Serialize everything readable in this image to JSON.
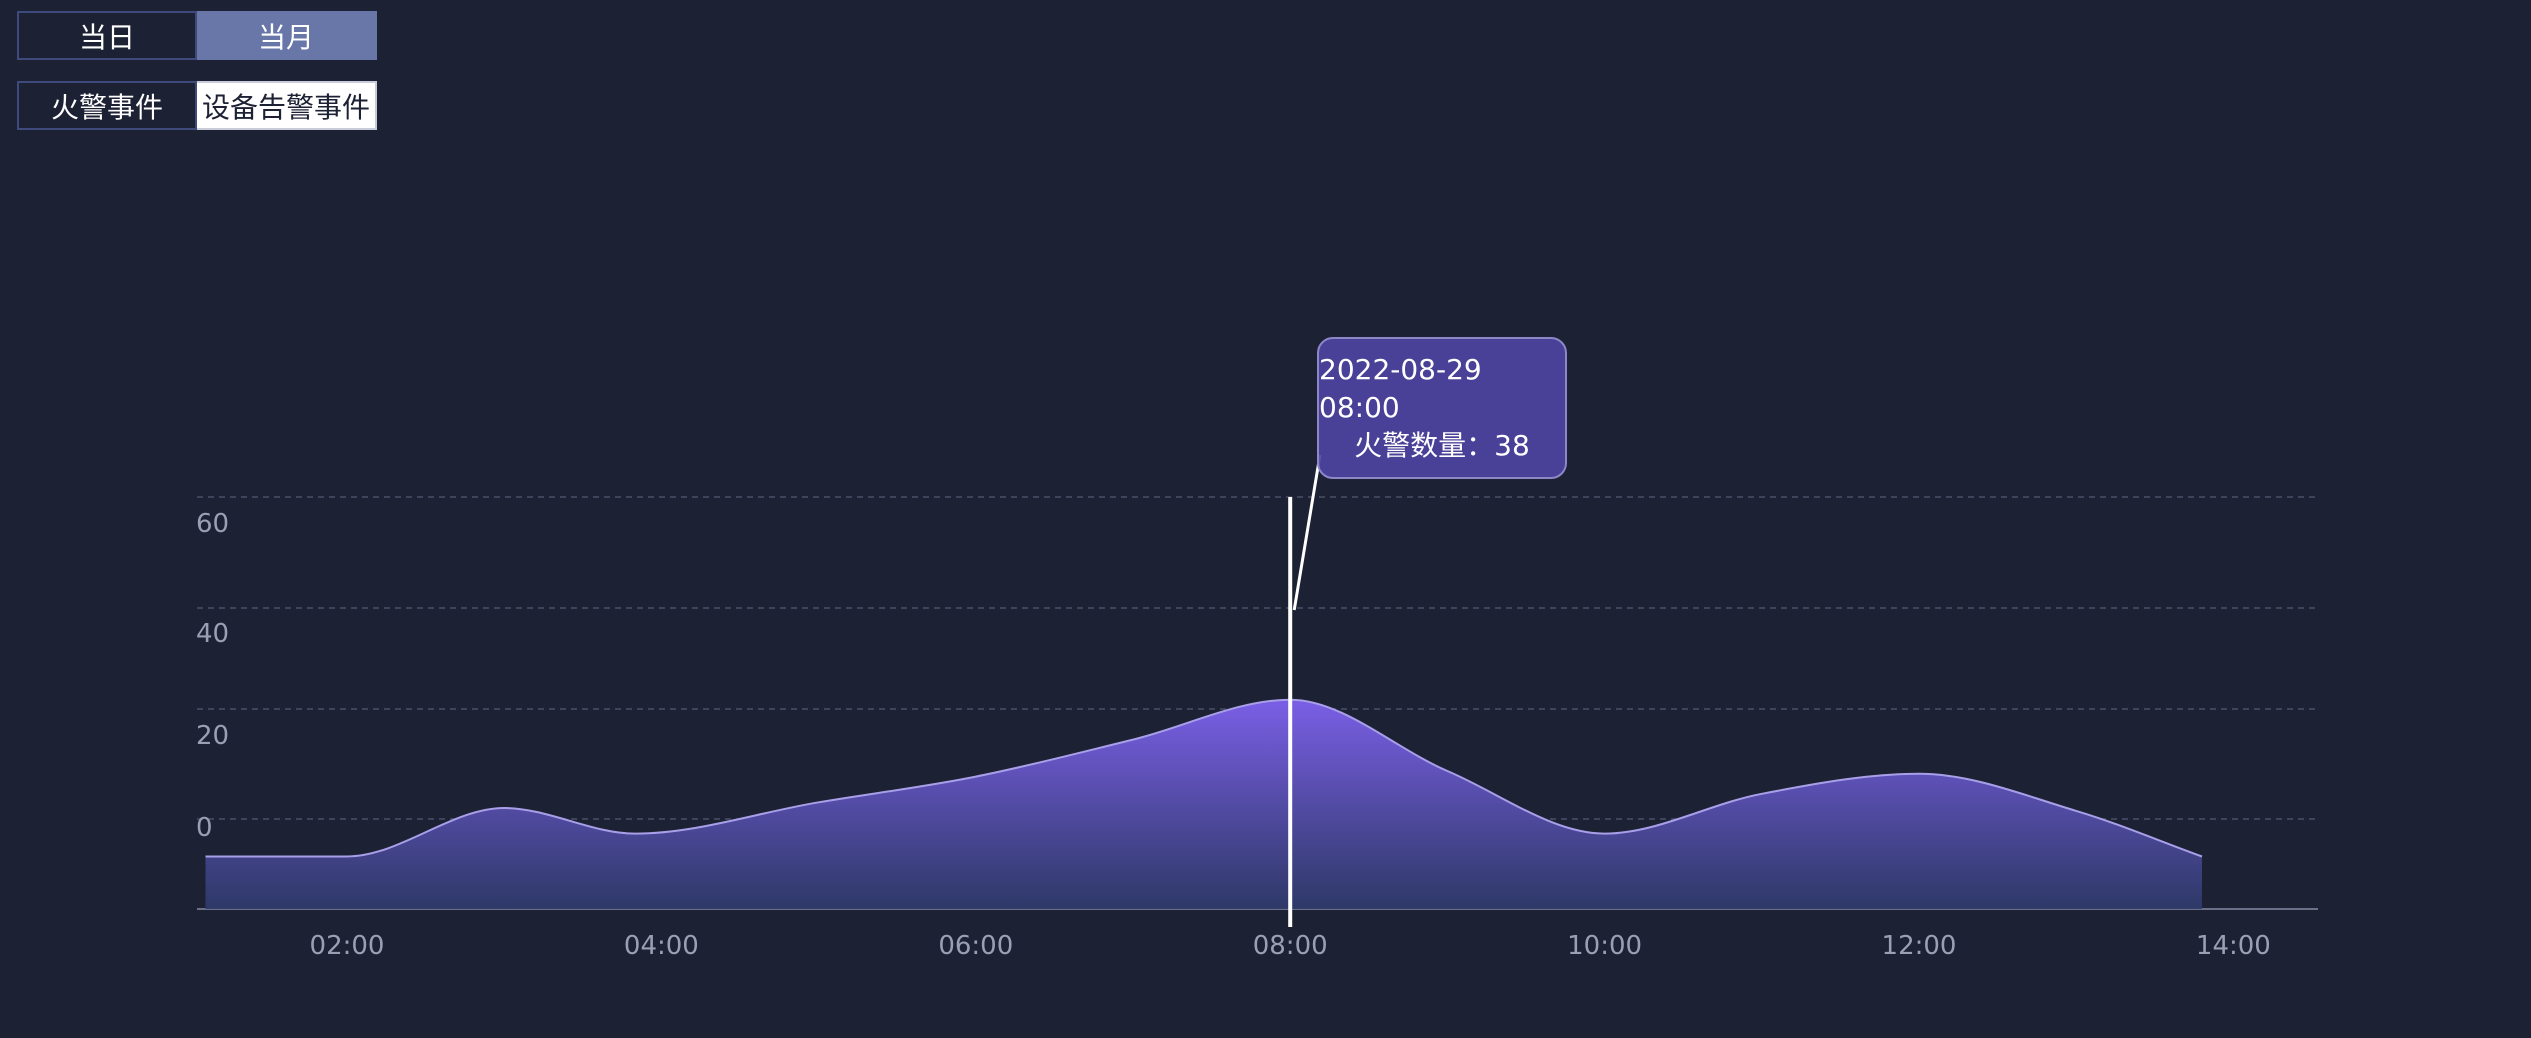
{
  "controls": {
    "range_tabs": [
      "当日",
      "当月"
    ],
    "range_active": "当月",
    "event_tabs": [
      "火警事件",
      "设备告警事件"
    ],
    "event_active": "设备告警事件"
  },
  "tooltip": {
    "time": "2022-08-29 08:00",
    "value_line": "火警数量：38"
  },
  "colors": {
    "background": "#1c2133",
    "line": "#a89fe8",
    "area_top": "#7a5fe6",
    "area_bottom": "#2f3a6a",
    "axis_label": "#9aa0b4",
    "grid": "#4a5068",
    "cursor": "#ffffff"
  },
  "chart_data": {
    "type": "area",
    "title": "",
    "xlabel": "",
    "ylabel": "",
    "x_ticks": [
      "02:00",
      "04:00",
      "06:00",
      "08:00",
      "10:00",
      "12:00",
      "14:00"
    ],
    "y_ticks": [
      0,
      20,
      40,
      60
    ],
    "grid": "horizontal-dashed",
    "smooth": true,
    "series": [
      {
        "x": [
          "01:06",
          "02:00",
          "03:00",
          "03:50",
          "05:00",
          "06:00",
          "07:00",
          "08:00",
          "09:00",
          "10:00",
          "11:00",
          "12:00",
          "13:00",
          "13:48"
        ],
        "values": [
          -17,
          -17,
          0,
          -9,
          2,
          11,
          24,
          38,
          13,
          -9,
          5,
          12,
          -1,
          -17
        ]
      }
    ],
    "highlight": {
      "x": "08:00",
      "value": 38
    }
  }
}
